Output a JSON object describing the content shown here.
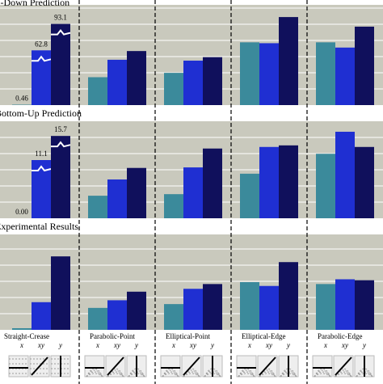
{
  "chart_data": [
    {
      "type": "bar",
      "title": "Top-Down Prediction",
      "ylim": [
        0,
        115
      ],
      "series": [
        {
          "color": "#3b8a9b",
          "values": [
            0.46,
            32,
            37,
            72,
            72
          ]
        },
        {
          "color": "#1f2fd2",
          "values": [
            62.8,
            52,
            51,
            71,
            66
          ]
        },
        {
          "color": "#10105c",
          "values": [
            93.1,
            62,
            55,
            101,
            90
          ]
        }
      ]
    },
    {
      "type": "bar",
      "title": "Bottom-Up Prediction",
      "ylim": [
        0,
        18.5
      ],
      "series": [
        {
          "color": "#3b8a9b",
          "values": [
            0,
            4.3,
            4.6,
            8.5,
            12.3
          ],
          "value_labels": [
            "0.00",
            null,
            null,
            null,
            null
          ]
        },
        {
          "color": "#1f2fd2",
          "values": [
            11.1,
            7.4,
            9.7,
            13.6,
            16.5
          ]
        },
        {
          "color": "#10105c",
          "values": [
            15.7,
            9.6,
            13.3,
            13.9,
            13.6
          ]
        }
      ]
    },
    {
      "type": "bar",
      "title": "Experimental Results",
      "ylim": [
        0,
        100
      ],
      "categories": [
        "Straight-Crease",
        "Parabolic-Point",
        "Elliptical-Point",
        "Elliptical-Edge",
        "Parabolic-Edge"
      ],
      "series": [
        {
          "name": "x",
          "color": "#3b8a9b",
          "values": [
            1.7,
            23,
            27,
            50,
            48
          ]
        },
        {
          "name": "xy",
          "color": "#1f2fd2",
          "values": [
            29,
            31,
            43,
            46,
            53
          ]
        },
        {
          "name": "y",
          "color": "#10105c",
          "values": [
            77,
            40,
            48,
            71,
            52
          ]
        }
      ]
    }
  ]
}
